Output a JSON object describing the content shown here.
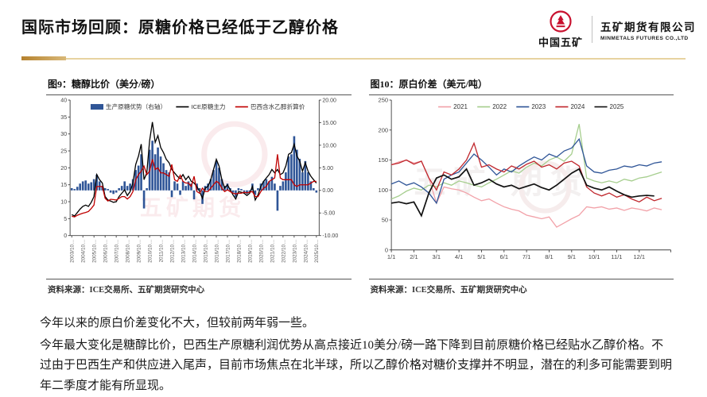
{
  "page": {
    "title": "国际市场回顾：原糖价格已经低于乙醇价格"
  },
  "logo": {
    "cn": "中国五矿",
    "company_cn": "五矿期货有限公司",
    "company_en": "MINMETALS FUTURES CO.,LTD",
    "emblem_color": "#C8102E"
  },
  "panels": [
    {
      "title": "图9：糖醇比价（美分/磅）",
      "source": "资料来源：ICE交易所、五矿期货研究中心"
    },
    {
      "title": "图10：原白价差（美元/吨）",
      "source": "资料来源：ICE交易所、五矿期货研究中心"
    }
  ],
  "commentary": [
    "今年以来的原白价差变化不大，但较前两年弱一些。",
    "今年最大变化是糖醇比价，巴西生产原糖利润优势从高点接近10美分/磅一路下降到目前原糖价格已经贴水乙醇价格。不过由于巴西生产和供应进入尾声，目前市场焦点在北半球，所以乙醇价格对糖价支撑并不明显，潜在的利多可能需要到明年二季度才能有所显现。"
  ],
  "colors": {
    "accent_gold_dark": "#b5822e",
    "accent_gold_light": "#e7d3a0",
    "bar_blue": "#2F5597",
    "line_black": "#000000",
    "line_red": "#C00000",
    "axis": "#404040",
    "watermark_red": "#C8102E"
  },
  "chart_data": [
    {
      "id": "sugar-ethanol-ratio",
      "type": "bar+line",
      "title": "图9：糖醇比价（美分/磅）",
      "grid": false,
      "legend_position": "top",
      "x_axis": {
        "min": 2003.6,
        "max": 2026.0
      },
      "x_values": {
        "start": 2003.75,
        "step": 0.25
      },
      "x_ticks": {
        "start": 2003.75,
        "step": 1.0,
        "labels": [
          "2003/10…",
          "2004/10…",
          "2005/10…",
          "2006/10…",
          "2007/10…",
          "2008/10…",
          "2009/10…",
          "2010/10…",
          "2011/10…",
          "2012/10…",
          "2013/10…",
          "2014/10…",
          "2015/10…",
          "2016/10…",
          "2017/10…",
          "2018/10…",
          "2019/10…",
          "2020/10…",
          "2021/10…",
          "2022/10…",
          "2023/10…",
          "2024/10…",
          "2025/10…"
        ]
      },
      "y_left": {
        "min": 0,
        "max": 40,
        "ticks": [
          0,
          5,
          10,
          15,
          20,
          25,
          30,
          35,
          40
        ]
      },
      "y_right": {
        "min": -10,
        "max": 20,
        "ticks": [
          -10,
          -5,
          0,
          5,
          10,
          15,
          20
        ]
      },
      "series": [
        {
          "name": "生产原糖优势（右轴）",
          "type": "bar",
          "axis": "right",
          "color": "#2F5597",
          "values": [
            0.5,
            0.3,
            0.8,
            1.5,
            2.0,
            2.2,
            1.5,
            1.8,
            2.5,
            3.5,
            2.0,
            1.0,
            0.5,
            0.3,
            -0.5,
            -0.8,
            -0.5,
            0.5,
            1.0,
            2.0,
            1.0,
            1.5,
            2.5,
            4.5,
            5.5,
            8.0,
            -4.0,
            0.5,
            9.0,
            11.0,
            8.0,
            9.5,
            7.5,
            6.0,
            4.5,
            4.0,
            -1.5,
            2.0,
            1.5,
            -1.0,
            2.0,
            1.0,
            2.0,
            1.5,
            -2.0,
            1.5,
            0.5,
            -3.0,
            1.0,
            1.5,
            2.5,
            4.5,
            6.5,
            5.0,
            2.5,
            1.0,
            1.5,
            0.5,
            -0.5,
            -1.5,
            0.5,
            0.3,
            -0.3,
            -0.8,
            -0.3,
            1.5,
            -1.0,
            0.5,
            1.5,
            2.0,
            2.5,
            2.0,
            3.0,
            1.5,
            -4.5,
            1.0,
            2.0,
            4.0,
            7.5,
            8.0,
            12.0,
            9.0,
            7.0,
            4.0,
            6.5,
            4.0,
            2.0,
            0.5,
            -0.5
          ]
        },
        {
          "name": "ICE原糖主力",
          "type": "line",
          "axis": "left",
          "color": "#000000",
          "values": [
            6.2,
            5.8,
            6.8,
            7.8,
            8.6,
            9.0,
            8.6,
            9.8,
            11.5,
            18.0,
            16.5,
            15.5,
            11.5,
            10.5,
            10.2,
            9.8,
            10.0,
            11.5,
            12.5,
            13.5,
            11.8,
            13.0,
            15.5,
            21.0,
            23.5,
            27.0,
            16.5,
            18.5,
            28.0,
            33.5,
            27.5,
            29.5,
            26.0,
            24.5,
            22.5,
            21.5,
            19.5,
            18.5,
            17.5,
            16.8,
            18.0,
            16.5,
            17.5,
            16.0,
            15.5,
            14.5,
            13.0,
            11.0,
            14.0,
            14.5,
            16.5,
            19.5,
            22.5,
            20.5,
            16.5,
            14.0,
            15.0,
            13.5,
            12.0,
            10.8,
            13.0,
            12.8,
            12.5,
            11.8,
            12.5,
            14.5,
            10.5,
            12.0,
            14.5,
            16.0,
            17.0,
            18.0,
            19.5,
            18.5,
            19.5,
            18.0,
            18.5,
            20.5,
            24.0,
            24.5,
            27.0,
            23.5,
            22.0,
            19.0,
            21.5,
            19.0,
            17.5,
            16.5,
            15.5
          ]
        },
        {
          "name": "巴西含水乙醇折算价",
          "type": "line",
          "axis": "left",
          "color": "#C00000",
          "values": [
            5.7,
            5.5,
            6.0,
            6.3,
            6.6,
            6.8,
            7.1,
            8.0,
            9.0,
            14.5,
            14.5,
            14.5,
            11.0,
            10.2,
            10.7,
            10.6,
            10.5,
            11.0,
            11.5,
            11.5,
            10.8,
            11.5,
            13.0,
            16.5,
            18.0,
            19.0,
            20.5,
            18.0,
            19.0,
            22.5,
            19.5,
            20.0,
            18.5,
            18.5,
            18.0,
            17.5,
            21.0,
            16.5,
            16.0,
            17.8,
            16.0,
            15.5,
            15.5,
            14.5,
            17.5,
            13.0,
            12.5,
            14.0,
            13.0,
            13.0,
            14.0,
            15.0,
            16.0,
            15.5,
            14.0,
            13.0,
            13.5,
            13.0,
            12.5,
            12.3,
            12.5,
            12.5,
            12.8,
            12.6,
            12.8,
            13.0,
            11.5,
            11.5,
            13.0,
            14.0,
            14.5,
            16.0,
            16.5,
            17.0,
            24.0,
            17.0,
            16.5,
            16.5,
            16.5,
            16.5,
            15.0,
            14.5,
            15.0,
            15.0,
            15.0,
            15.0,
            15.5,
            16.0,
            16.0
          ]
        }
      ]
    },
    {
      "id": "raw-white-premium",
      "type": "line",
      "title": "图10：原白价差（美元/吨）",
      "grid": false,
      "legend_position": "top",
      "x_axis": {
        "min": 0,
        "max": 12.4
      },
      "x_step_months": 0.3333333,
      "x_ticks": {
        "labels": [
          "1/1",
          "2/1",
          "3/1",
          "4/1",
          "5/1",
          "6/1",
          "7/1",
          "8/1",
          "9/1",
          "10/1",
          "11/1",
          "12/1"
        ]
      },
      "y_axis": {
        "min": 0,
        "max": 250,
        "ticks": [
          0,
          50,
          100,
          150,
          200,
          250
        ]
      },
      "series": [
        {
          "name": "2021",
          "color": "#F2A2A9",
          "values": [
            142,
            147,
            150,
            145,
            148,
            120,
            78,
            105,
            102,
            100,
            95,
            88,
            82,
            85,
            78,
            72,
            68,
            65,
            58,
            55,
            52,
            55,
            38,
            45,
            52,
            58,
            72,
            70,
            72,
            68,
            70,
            66,
            70,
            68,
            65,
            70,
            67
          ]
        },
        {
          "name": "2022",
          "color": "#A6CE8E",
          "values": [
            85,
            90,
            98,
            103,
            100,
            108,
            105,
            112,
            108,
            115,
            112,
            108,
            105,
            112,
            118,
            125,
            132,
            128,
            138,
            145,
            140,
            150,
            155,
            148,
            160,
            210,
            120,
            115,
            112,
            115,
            112,
            118,
            115,
            120,
            122,
            126,
            130
          ]
        },
        {
          "name": "2023",
          "color": "#2F5597",
          "values": [
            110,
            115,
            108,
            112,
            105,
            95,
            78,
            118,
            125,
            130,
            145,
            160,
            150,
            138,
            125,
            135,
            130,
            140,
            148,
            155,
            150,
            160,
            155,
            165,
            170,
            185,
            140,
            130,
            128,
            133,
            135,
            140,
            138,
            142,
            140,
            145,
            147
          ]
        },
        {
          "name": "2024",
          "color": "#C0272D",
          "values": [
            142,
            145,
            150,
            143,
            148,
            120,
            100,
            130,
            125,
            135,
            150,
            178,
            138,
            142,
            135,
            130,
            140,
            135,
            143,
            148,
            138,
            142,
            135,
            145,
            148,
            140,
            105,
            95,
            90,
            95,
            88,
            92,
            85,
            80,
            88,
            82,
            86
          ]
        },
        {
          "name": "2025",
          "color": "#111111",
          "values": [
            78,
            80,
            77,
            80,
            57,
            95,
            120,
            125,
            118,
            122,
            135,
            108,
            112,
            118,
            110,
            105,
            108,
            102,
            106,
            110,
            104,
            100,
            108,
            118,
            128,
            135,
            108,
            103,
            100,
            105,
            98,
            92,
            88,
            90,
            91,
            90
          ]
        }
      ]
    }
  ]
}
